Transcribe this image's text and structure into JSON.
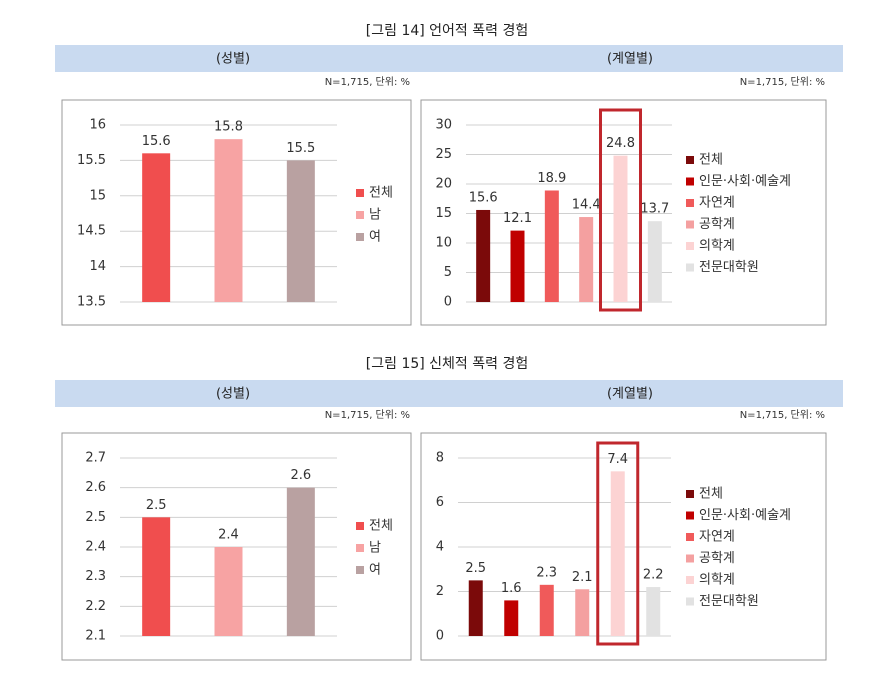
{
  "figures": [
    {
      "title": "[그림 14] 언어적 폭력 경험",
      "headers": [
        "(성별)",
        "(계열별)"
      ],
      "notes": [
        "N=1,715, 단위: %",
        "N=1,715, 단위: %"
      ]
    },
    {
      "title": "[그림 15] 신체적 폭력 경험",
      "headers": [
        "(성별)",
        "(계열별)"
      ],
      "notes": [
        "N=1,715, 단위: %",
        "N=1,715, 단위: %"
      ]
    }
  ],
  "chart_data": [
    {
      "type": "bar",
      "categories": [
        "전체",
        "남",
        "여"
      ],
      "values": [
        15.6,
        15.8,
        15.5
      ],
      "colors": [
        "#f04e4e",
        "#f7a3a3",
        "#b9a1a1"
      ],
      "ylim": [
        13.5,
        16
      ],
      "yticks": [
        13.5,
        14,
        14.5,
        15,
        15.5,
        16
      ],
      "grid": true,
      "legend": "right"
    },
    {
      "type": "bar",
      "categories": [
        "전체",
        "인문·사회·예술계",
        "자연계",
        "공학계",
        "의학계",
        "전문대학원"
      ],
      "values": [
        15.6,
        12.1,
        18.9,
        14.4,
        24.8,
        13.7
      ],
      "colors": [
        "#7b0a0a",
        "#c00000",
        "#f05a5a",
        "#f4a0a0",
        "#fcd3d3",
        "#e2e2e2"
      ],
      "ylim": [
        0,
        30
      ],
      "yticks": [
        0,
        5,
        10,
        15,
        20,
        25,
        30
      ],
      "grid": true,
      "legend": "right"
    },
    {
      "type": "bar",
      "categories": [
        "전체",
        "남",
        "여"
      ],
      "values": [
        2.5,
        2.4,
        2.6
      ],
      "colors": [
        "#f04e4e",
        "#f7a3a3",
        "#b9a1a1"
      ],
      "ylim": [
        2.1,
        2.7
      ],
      "yticks": [
        2.1,
        2.2,
        2.3,
        2.4,
        2.5,
        2.6,
        2.7
      ],
      "grid": true,
      "legend": "right"
    },
    {
      "type": "bar",
      "categories": [
        "전체",
        "인문·사회·예술계",
        "자연계",
        "공학계",
        "의학계",
        "전문대학원"
      ],
      "values": [
        2.5,
        1.6,
        2.3,
        2.1,
        7.4,
        2.2
      ],
      "colors": [
        "#7b0a0a",
        "#c00000",
        "#f05a5a",
        "#f4a0a0",
        "#fcd3d3",
        "#e2e2e2"
      ],
      "ylim": [
        0,
        8
      ],
      "yticks": [
        0,
        2,
        4,
        6,
        8
      ],
      "grid": true,
      "legend": "right"
    }
  ]
}
